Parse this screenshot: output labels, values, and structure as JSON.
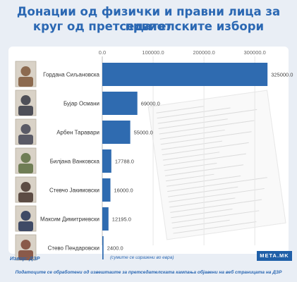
{
  "title_line1": "Донации од физички и правни лица за првиот",
  "title_line2": "круг од претседателските избори",
  "source": "Извор: ДЗР",
  "currency_note": "(сумите се изразени во евра)",
  "footnote": "Податоците се обработени од извештаите за претседателската кампања објавени на веб страницата на ДЗР",
  "logo_text": "META.MK",
  "colors": {
    "bar": "#2f6bb0",
    "title": "#2b68b3",
    "background": "#e9eef5"
  },
  "chart_data": {
    "type": "bar",
    "orientation": "horizontal",
    "categories": [
      "Гордана Сиљановска",
      "Бујар Османи",
      "Арбен Таравари",
      "Билјана Ванковска",
      "Стевчо Јакимовски",
      "Максим Димитриевски",
      "Стево Пендаровски"
    ],
    "values": [
      325000.0,
      69000.0,
      55000.0,
      17788.0,
      16000.0,
      12195.0,
      2400.0
    ],
    "value_labels": [
      "325000.0",
      "69000.0",
      "55000.0",
      "17788.0",
      "16000.0",
      "12195.0",
      "2400.0"
    ],
    "xticks": [
      0,
      100000,
      200000,
      300000
    ],
    "xtick_labels": [
      "0.0",
      "100000.0",
      "200000.0",
      "300000.0"
    ],
    "xlim": [
      0,
      340000
    ],
    "grid": true,
    "legend": "none"
  }
}
